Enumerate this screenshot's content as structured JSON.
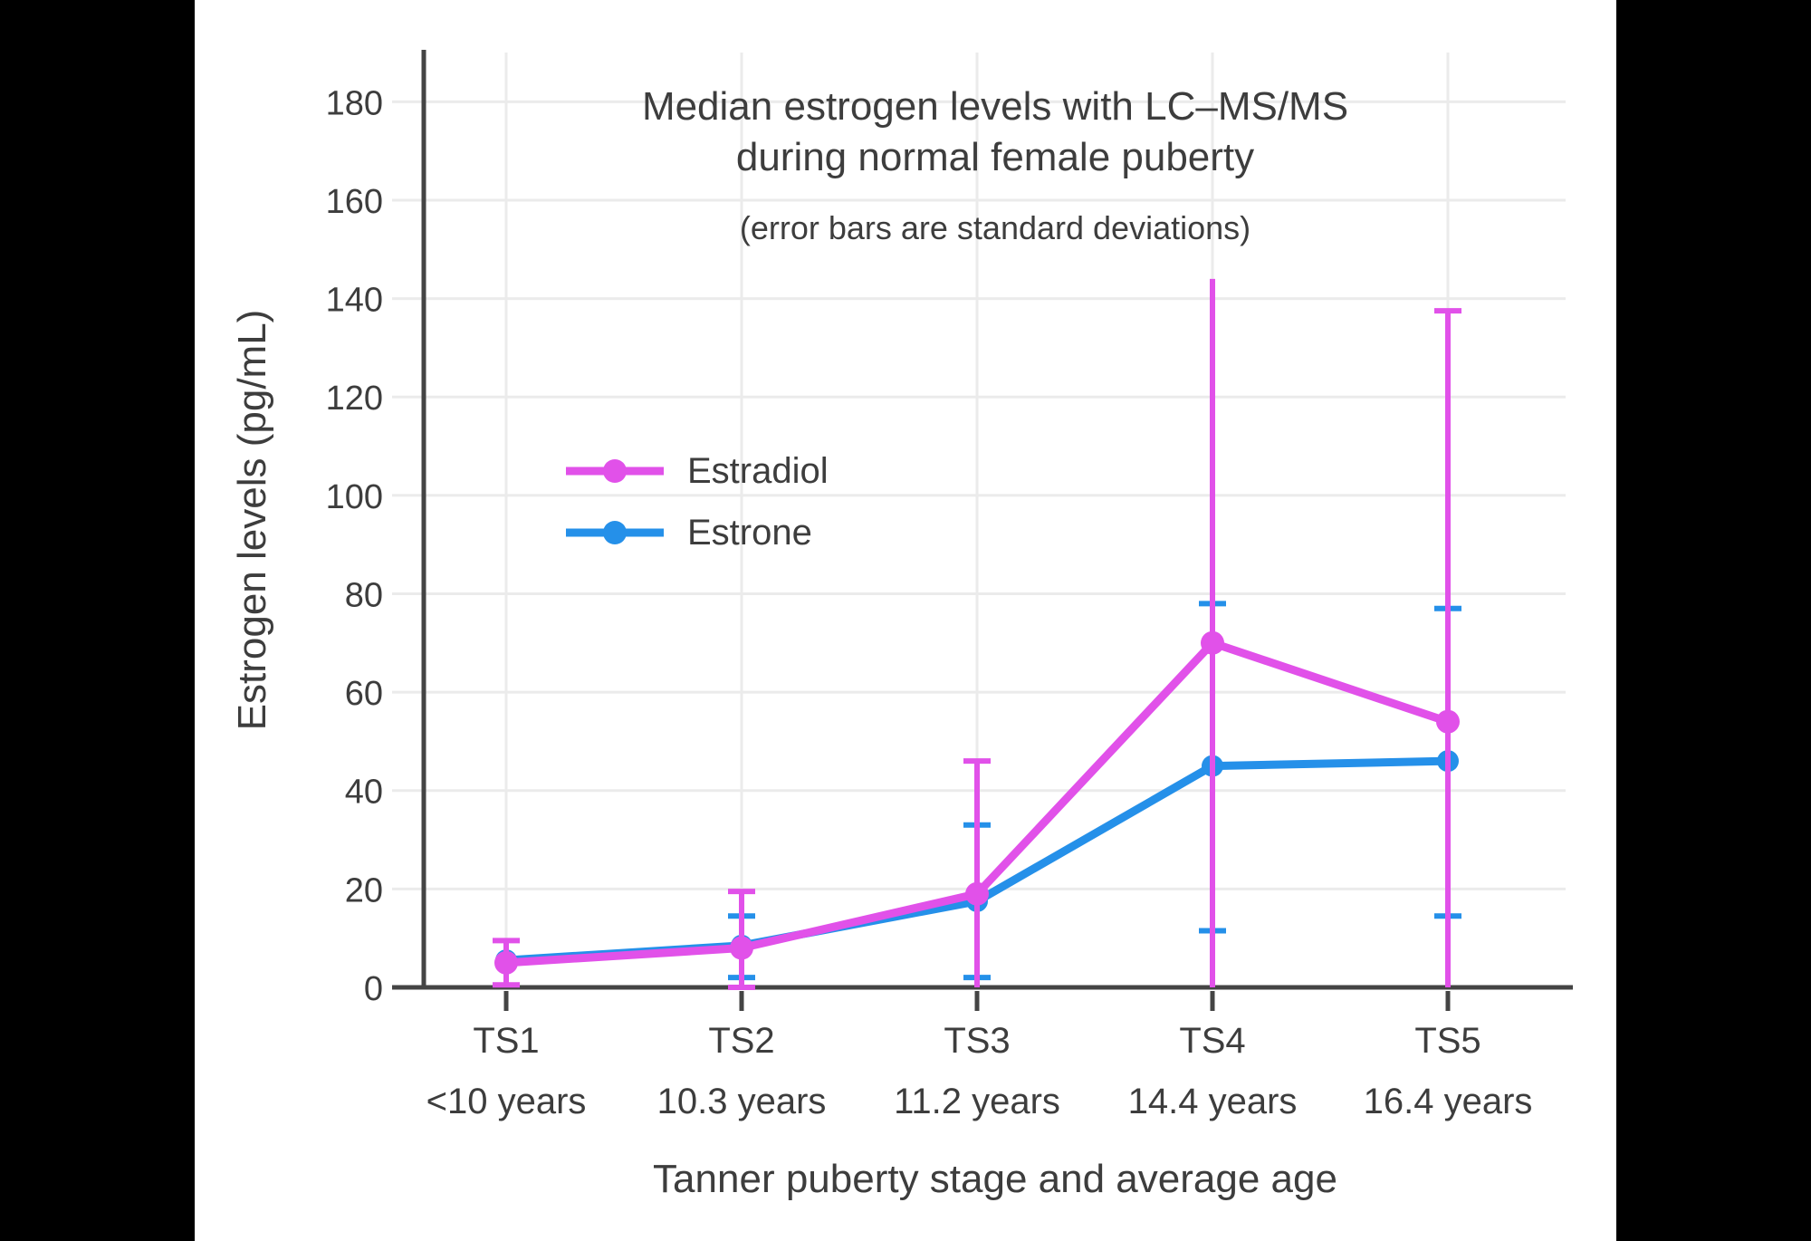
{
  "chart_data": {
    "type": "line",
    "title": "Median estrogen levels with LC–MS/MS during normal female puberty",
    "title_line1": "Median estrogen levels with LC–MS/MS",
    "title_line2": "during normal female puberty",
    "subtitle": "(error bars are standard deviations)",
    "xlabel": "Tanner puberty stage and average age",
    "ylabel": "Estrogen levels (pg/mL)",
    "categories": [
      "TS1",
      "TS2",
      "TS3",
      "TS4",
      "TS5"
    ],
    "category_sublabels": [
      "<10 years",
      "10.3 years",
      "11.2 years",
      "14.4 years",
      "16.4 years"
    ],
    "ylim": [
      0,
      190
    ],
    "yticks": [
      0,
      20,
      40,
      60,
      80,
      100,
      120,
      140,
      160,
      180
    ],
    "grid": true,
    "legend_position": "inside-upper-left",
    "axis_color": "#444444",
    "grid_color": "#ebebeb",
    "text_color": "#3d3d3d",
    "background_color": "#ffffff",
    "series": [
      {
        "name": "Estradiol",
        "color": "#e151e9",
        "values": [
          5,
          8,
          19,
          70,
          54
        ],
        "error_top": [
          9.5,
          19.5,
          46,
          144,
          137.5
        ],
        "error_bottom": [
          0.5,
          0,
          0,
          0,
          0
        ],
        "error_top_cap": [
          true,
          true,
          true,
          false,
          true
        ],
        "error_bottom_cap": [
          true,
          true,
          false,
          false,
          false
        ]
      },
      {
        "name": "Estrone",
        "color": "#2590e9",
        "values": [
          5.5,
          8.5,
          17.5,
          45,
          46
        ],
        "error_top": [
          null,
          14.5,
          33,
          78,
          77
        ],
        "error_bottom": [
          null,
          2,
          2,
          11.5,
          14.5
        ],
        "error_top_cap": [
          false,
          true,
          true,
          true,
          true
        ],
        "error_bottom_cap": [
          false,
          true,
          true,
          true,
          true
        ]
      }
    ]
  }
}
